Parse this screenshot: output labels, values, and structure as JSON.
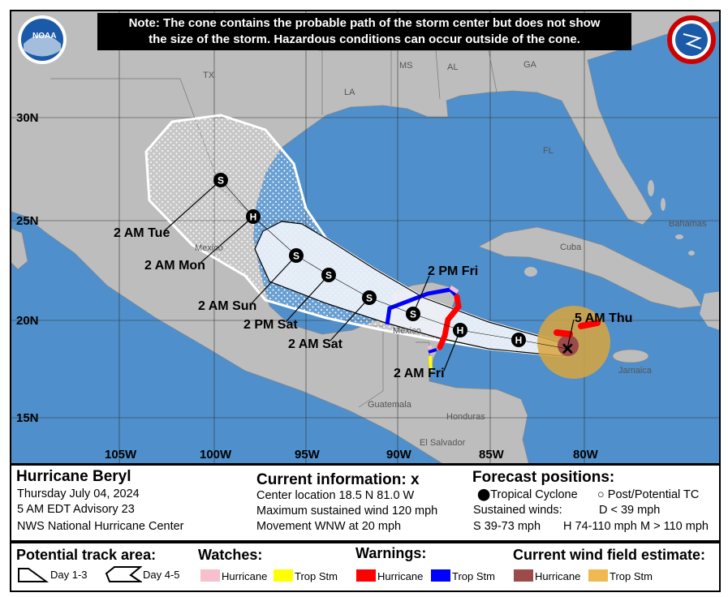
{
  "note": {
    "line1": "Note: The cone contains the probable path of the storm center but does not show",
    "line2": "the size of the storm. Hazardous conditions can occur outside of the cone."
  },
  "logos": {
    "left": "NOAA",
    "right": "NATIONAL WEATHER SERVICE"
  },
  "axes": {
    "lat": [
      "30N",
      "25N",
      "20N",
      "15N"
    ],
    "lon": [
      "105W",
      "100W",
      "95W",
      "90W",
      "85W",
      "80W"
    ]
  },
  "places": {
    "tx": "TX",
    "la": "LA",
    "ms": "MS",
    "al": "AL",
    "ga": "GA",
    "fl": "FL",
    "mexico1": "Mexico",
    "mexico2": "Mexico",
    "cuba": "Cuba",
    "bahamas": "Bahamas",
    "jamaica": "Jamaica",
    "guatemala": "Guatemala",
    "honduras": "Honduras",
    "elsalvador": "El Salvador"
  },
  "track": {
    "points": [
      {
        "code": "S",
        "label": "2 AM Tue"
      },
      {
        "code": "H",
        "label": "2 AM Mon"
      },
      {
        "code": "S",
        "label": "2 AM Sun"
      },
      {
        "code": "S",
        "label": "2 PM Sat"
      },
      {
        "code": "S",
        "label": "2 AM Sat"
      },
      {
        "code": "S",
        "label": "2 PM Fri"
      },
      {
        "code": "H",
        "label": "2 AM Fri"
      },
      {
        "code": "H",
        "label": ""
      }
    ],
    "current_label": "5 AM Thu"
  },
  "storm": {
    "name": "Hurricane Beryl",
    "date": "Thursday July 04, 2024",
    "advisory": "5 AM EDT Advisory 23",
    "center": "NWS National Hurricane Center"
  },
  "current": {
    "title": "Current information: ",
    "marker": "x",
    "location": "Center location 18.5 N 81.0 W",
    "wind": "Maximum sustained wind 120 mph",
    "movement": "Movement WNW at 20 mph"
  },
  "forecast": {
    "title": "Forecast positions:",
    "tc": "Tropical Cyclone",
    "ptc": "Post/Potential TC",
    "winds": "Sustained winds:",
    "d": "D < 39 mph",
    "s": "S 39-73 mph",
    "h": "H 74-110 mph",
    "m": "M > 110 mph"
  },
  "legend": {
    "track_title": "Potential track area:",
    "day13": "Day 1-3",
    "day45": "Day 4-5",
    "watches_title": "Watches:",
    "warnings_title": "Warnings:",
    "wind_title": "Current wind field estimate:",
    "hurricane": "Hurricane",
    "tropstm": "Trop Stm"
  },
  "colors": {
    "ocean": "#4f8fcb",
    "land": "#bdbdbd",
    "hurricane_watch": "#f8c0cc",
    "ts_watch": "#ffff00",
    "hurricane_warning": "#ff0000",
    "ts_warning": "#0000ff",
    "wind_hurricane": "#9c4a4a",
    "wind_ts": "#f0b850"
  }
}
